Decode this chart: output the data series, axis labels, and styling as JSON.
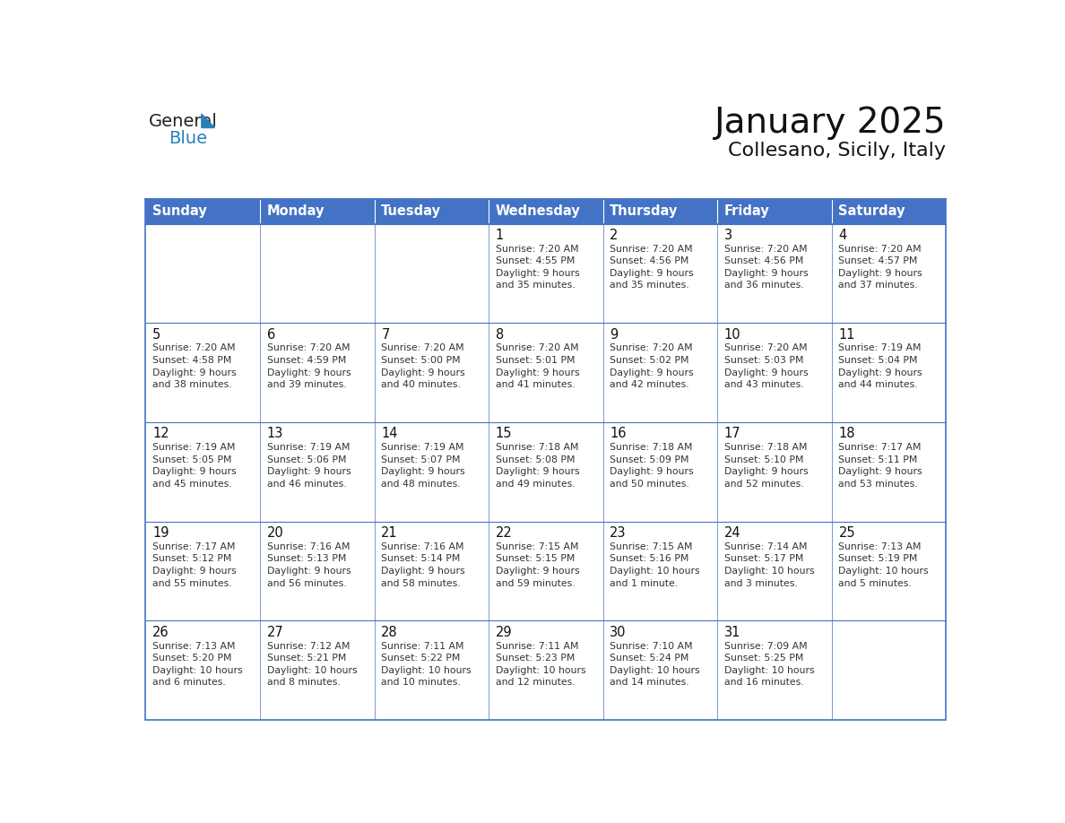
{
  "title": "January 2025",
  "subtitle": "Collesano, Sicily, Italy",
  "header_bg": "#4472C4",
  "header_text_color": "#FFFFFF",
  "cell_bg": "#FFFFFF",
  "border_color": "#4472C4",
  "text_color": "#333333",
  "day_names": [
    "Sunday",
    "Monday",
    "Tuesday",
    "Wednesday",
    "Thursday",
    "Friday",
    "Saturday"
  ],
  "weeks": [
    [
      {
        "day": "",
        "text": ""
      },
      {
        "day": "",
        "text": ""
      },
      {
        "day": "",
        "text": ""
      },
      {
        "day": "1",
        "text": "Sunrise: 7:20 AM\nSunset: 4:55 PM\nDaylight: 9 hours\nand 35 minutes."
      },
      {
        "day": "2",
        "text": "Sunrise: 7:20 AM\nSunset: 4:56 PM\nDaylight: 9 hours\nand 35 minutes."
      },
      {
        "day": "3",
        "text": "Sunrise: 7:20 AM\nSunset: 4:56 PM\nDaylight: 9 hours\nand 36 minutes."
      },
      {
        "day": "4",
        "text": "Sunrise: 7:20 AM\nSunset: 4:57 PM\nDaylight: 9 hours\nand 37 minutes."
      }
    ],
    [
      {
        "day": "5",
        "text": "Sunrise: 7:20 AM\nSunset: 4:58 PM\nDaylight: 9 hours\nand 38 minutes."
      },
      {
        "day": "6",
        "text": "Sunrise: 7:20 AM\nSunset: 4:59 PM\nDaylight: 9 hours\nand 39 minutes."
      },
      {
        "day": "7",
        "text": "Sunrise: 7:20 AM\nSunset: 5:00 PM\nDaylight: 9 hours\nand 40 minutes."
      },
      {
        "day": "8",
        "text": "Sunrise: 7:20 AM\nSunset: 5:01 PM\nDaylight: 9 hours\nand 41 minutes."
      },
      {
        "day": "9",
        "text": "Sunrise: 7:20 AM\nSunset: 5:02 PM\nDaylight: 9 hours\nand 42 minutes."
      },
      {
        "day": "10",
        "text": "Sunrise: 7:20 AM\nSunset: 5:03 PM\nDaylight: 9 hours\nand 43 minutes."
      },
      {
        "day": "11",
        "text": "Sunrise: 7:19 AM\nSunset: 5:04 PM\nDaylight: 9 hours\nand 44 minutes."
      }
    ],
    [
      {
        "day": "12",
        "text": "Sunrise: 7:19 AM\nSunset: 5:05 PM\nDaylight: 9 hours\nand 45 minutes."
      },
      {
        "day": "13",
        "text": "Sunrise: 7:19 AM\nSunset: 5:06 PM\nDaylight: 9 hours\nand 46 minutes."
      },
      {
        "day": "14",
        "text": "Sunrise: 7:19 AM\nSunset: 5:07 PM\nDaylight: 9 hours\nand 48 minutes."
      },
      {
        "day": "15",
        "text": "Sunrise: 7:18 AM\nSunset: 5:08 PM\nDaylight: 9 hours\nand 49 minutes."
      },
      {
        "day": "16",
        "text": "Sunrise: 7:18 AM\nSunset: 5:09 PM\nDaylight: 9 hours\nand 50 minutes."
      },
      {
        "day": "17",
        "text": "Sunrise: 7:18 AM\nSunset: 5:10 PM\nDaylight: 9 hours\nand 52 minutes."
      },
      {
        "day": "18",
        "text": "Sunrise: 7:17 AM\nSunset: 5:11 PM\nDaylight: 9 hours\nand 53 minutes."
      }
    ],
    [
      {
        "day": "19",
        "text": "Sunrise: 7:17 AM\nSunset: 5:12 PM\nDaylight: 9 hours\nand 55 minutes."
      },
      {
        "day": "20",
        "text": "Sunrise: 7:16 AM\nSunset: 5:13 PM\nDaylight: 9 hours\nand 56 minutes."
      },
      {
        "day": "21",
        "text": "Sunrise: 7:16 AM\nSunset: 5:14 PM\nDaylight: 9 hours\nand 58 minutes."
      },
      {
        "day": "22",
        "text": "Sunrise: 7:15 AM\nSunset: 5:15 PM\nDaylight: 9 hours\nand 59 minutes."
      },
      {
        "day": "23",
        "text": "Sunrise: 7:15 AM\nSunset: 5:16 PM\nDaylight: 10 hours\nand 1 minute."
      },
      {
        "day": "24",
        "text": "Sunrise: 7:14 AM\nSunset: 5:17 PM\nDaylight: 10 hours\nand 3 minutes."
      },
      {
        "day": "25",
        "text": "Sunrise: 7:13 AM\nSunset: 5:19 PM\nDaylight: 10 hours\nand 5 minutes."
      }
    ],
    [
      {
        "day": "26",
        "text": "Sunrise: 7:13 AM\nSunset: 5:20 PM\nDaylight: 10 hours\nand 6 minutes."
      },
      {
        "day": "27",
        "text": "Sunrise: 7:12 AM\nSunset: 5:21 PM\nDaylight: 10 hours\nand 8 minutes."
      },
      {
        "day": "28",
        "text": "Sunrise: 7:11 AM\nSunset: 5:22 PM\nDaylight: 10 hours\nand 10 minutes."
      },
      {
        "day": "29",
        "text": "Sunrise: 7:11 AM\nSunset: 5:23 PM\nDaylight: 10 hours\nand 12 minutes."
      },
      {
        "day": "30",
        "text": "Sunrise: 7:10 AM\nSunset: 5:24 PM\nDaylight: 10 hours\nand 14 minutes."
      },
      {
        "day": "31",
        "text": "Sunrise: 7:09 AM\nSunset: 5:25 PM\nDaylight: 10 hours\nand 16 minutes."
      },
      {
        "day": "",
        "text": ""
      }
    ]
  ],
  "logo_color_general": "#222222",
  "logo_color_blue": "#2980B9",
  "logo_triangle_color": "#2980B9"
}
